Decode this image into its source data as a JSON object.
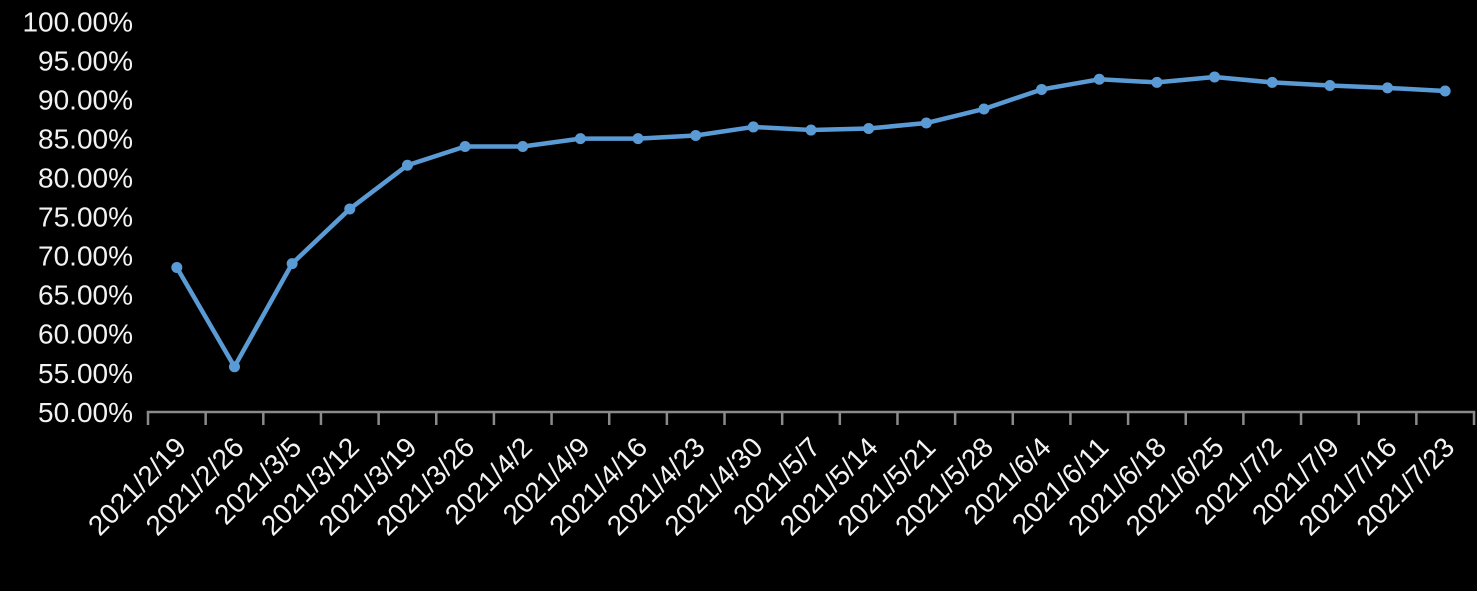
{
  "chart": {
    "background_color": "#000000",
    "text_color": "#f2f2f2",
    "axis_color": "#8a8a8a",
    "line_color": "#5b9bd5",
    "marker_color": "#5b9bd5"
  },
  "chart_data": {
    "type": "line",
    "title": "",
    "xlabel": "",
    "ylabel": "",
    "legend": "none",
    "grid": false,
    "ylim": [
      50,
      100
    ],
    "y_tick_step": 5,
    "y_tick_values": [
      50,
      55,
      60,
      65,
      70,
      75,
      80,
      85,
      90,
      95,
      100
    ],
    "y_tick_labels": [
      "50.00%",
      "55.00%",
      "60.00%",
      "65.00%",
      "70.00%",
      "75.00%",
      "80.00%",
      "85.00%",
      "90.00%",
      "95.00%",
      "100.00%"
    ],
    "categories": [
      "2021/2/19",
      "2021/2/26",
      "2021/3/5",
      "2021/3/12",
      "2021/3/19",
      "2021/3/26",
      "2021/4/2",
      "2021/4/9",
      "2021/4/16",
      "2021/4/23",
      "2021/4/30",
      "2021/5/7",
      "2021/5/14",
      "2021/5/21",
      "2021/5/28",
      "2021/6/4",
      "2021/6/11",
      "2021/6/18",
      "2021/6/25",
      "2021/7/2",
      "2021/7/9",
      "2021/7/16",
      "2021/7/23"
    ],
    "series": [
      {
        "name": "",
        "values": [
          68.5,
          55.8,
          69.0,
          76.0,
          81.6,
          84.0,
          84.0,
          85.0,
          85.0,
          85.4,
          86.5,
          86.1,
          86.3,
          87.0,
          88.8,
          91.3,
          92.6,
          92.2,
          92.9,
          92.2,
          91.8,
          91.5,
          91.1
        ]
      }
    ]
  }
}
